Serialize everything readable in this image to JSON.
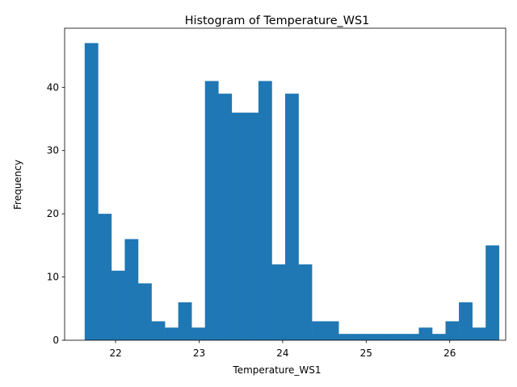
{
  "chart_data": {
    "type": "bar",
    "title": "Histogram of Temperature_WS1",
    "xlabel": "Temperature_WS1",
    "ylabel": "Frequency",
    "bar_color": "#1f77b4",
    "bin_start": 21.63,
    "bin_width": 0.16,
    "counts": [
      47,
      20,
      11,
      16,
      9,
      3,
      2,
      6,
      2,
      41,
      39,
      36,
      36,
      41,
      12,
      39,
      12,
      3,
      3,
      1,
      1,
      1,
      1,
      1,
      1,
      2,
      1,
      3,
      6,
      2,
      15
    ],
    "xlim": [
      21.39,
      26.67
    ],
    "ylim": [
      0,
      49.35
    ],
    "xticks": [
      22,
      23,
      24,
      25,
      26
    ],
    "yticks": [
      0,
      10,
      20,
      30,
      40
    ],
    "grid": false
  }
}
